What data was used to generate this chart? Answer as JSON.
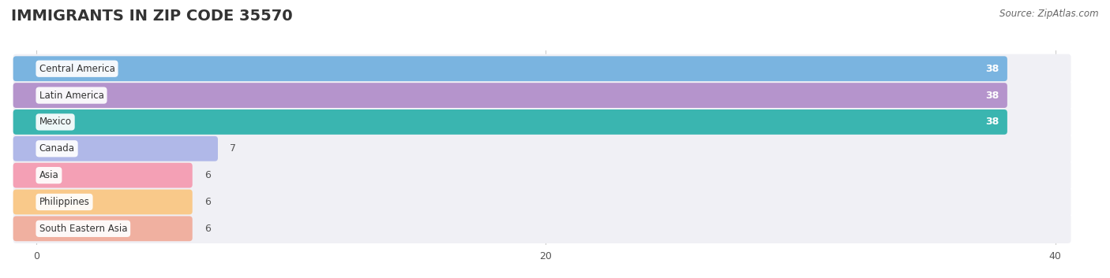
{
  "title": "IMMIGRANTS IN ZIP CODE 35570",
  "source": "Source: ZipAtlas.com",
  "categories": [
    "Central America",
    "Latin America",
    "Mexico",
    "Canada",
    "Asia",
    "Philippines",
    "South Eastern Asia"
  ],
  "values": [
    38,
    38,
    38,
    7,
    6,
    6,
    6
  ],
  "bar_colors": [
    "#7ab4e0",
    "#b594cc",
    "#3ab5b0",
    "#b0b8e8",
    "#f4a0b5",
    "#f9c98a",
    "#f0b0a0"
  ],
  "background_color": "#ffffff",
  "row_bg_color": "#f0f0f5",
  "xlim_max": 40,
  "xticks": [
    0,
    20,
    40
  ],
  "title_fontsize": 14,
  "bar_height": 0.7
}
